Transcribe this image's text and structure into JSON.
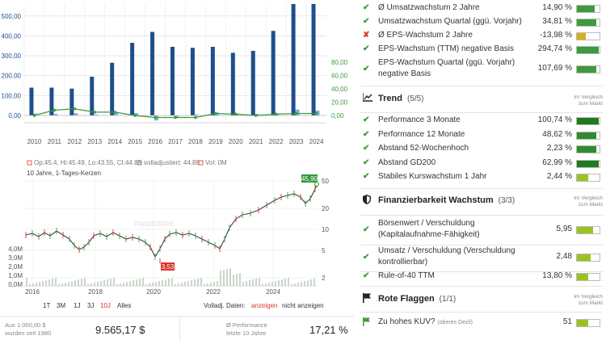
{
  "bar_chart": {
    "left_ticks": [
      "500,00",
      "400,00",
      "300,00",
      "200,00",
      "100,00",
      "0,00"
    ],
    "right_ticks": [
      "80,00",
      "60,00",
      "40,00",
      "20,00",
      "0,00"
    ],
    "years": [
      "2010",
      "2011",
      "2012",
      "2013",
      "2014",
      "2015",
      "2016",
      "2017",
      "2018",
      "2019",
      "2020",
      "2021",
      "2022",
      "2023",
      "2024"
    ],
    "revenue": [
      140,
      140,
      135,
      195,
      265,
      365,
      420,
      345,
      340,
      345,
      315,
      325,
      425,
      560,
      560
    ],
    "secondary": [
      10,
      8,
      12,
      5,
      15,
      12,
      -25,
      -12,
      5,
      15,
      10,
      8,
      8,
      30,
      25
    ],
    "growth_line": [
      0,
      8,
      10,
      5,
      5,
      0,
      -3,
      -3,
      -3,
      3,
      2,
      0,
      2,
      3,
      3
    ],
    "colors": {
      "revenue": "#1f4e8c",
      "secondary": "#7fb2dc",
      "line": "#3d9a3d"
    }
  },
  "stock_chart": {
    "legend": [
      {
        "label": "Op:45.4, Hi:45.49, Lo:43.55, CI:44.88",
        "color": "#d9342b"
      },
      {
        "label": "volladjustiert: 44.88",
        "color": "#888888"
      },
      {
        "label": "Vol: 0M",
        "color": "#d9342b"
      }
    ],
    "subtitle": "10 Jahre, 1-Tages-Kerzen",
    "watermark": "TRADERFOX",
    "price_ticks": [
      "50",
      "20",
      "10",
      "5",
      "2"
    ],
    "volume_ticks": [
      "4,0M",
      "3,0M",
      "2,0M",
      "1,0M",
      "0,0M"
    ],
    "x_labels": [
      "2016",
      "2018",
      "2020",
      "2022",
      "2024"
    ],
    "last_price": "45,90",
    "low_price": "3,53"
  },
  "timebar": {
    "ranges": [
      "1T",
      "3M",
      "1J",
      "3J",
      "10J",
      "Alles"
    ],
    "active_range": "10J",
    "vol_label": "Volladj. Daten:",
    "show_label": "anzeigen",
    "hide_label": "nicht anzeigen"
  },
  "perf": {
    "invest_label_1": "Aus 1.000,00 $",
    "invest_label_2": "wurden seit 1980",
    "invest_value": "9.565,17 $",
    "avg_label_1": "Ø Performance",
    "avg_label_2": "letzte 10 Jahre",
    "avg_value": "17,21 %"
  },
  "right": {
    "growth_rows": [
      {
        "label": "Ø Umsatzwachstum 2 Jahre",
        "value": "14,90 %",
        "status": "ok",
        "fill": 0.8,
        "color": "#3d9a3d"
      },
      {
        "label": "Umsatzwachstum Quartal (ggü. Vorjahr)",
        "value": "34,81 %",
        "status": "ok",
        "fill": 0.85,
        "color": "#3d9a3d"
      },
      {
        "label": "Ø EPS-Wachstum 2 Jahre",
        "value": "-13,98 %",
        "status": "bad",
        "fill": 0.4,
        "color": "#d4b11c"
      },
      {
        "label": "EPS-Wachstum (TTM) negative Basis",
        "value": "294,74 %",
        "status": "ok",
        "fill": 0.95,
        "color": "#3d9a3d"
      }
    ],
    "growth_row_multi": {
      "label1": "EPS-Wachstum Quartal (ggü. Vorjahr)",
      "label2": "negative Basis",
      "value": "107,69 %",
      "fill": 0.85,
      "color": "#3d9a3d"
    },
    "trend": {
      "title": "Trend",
      "count": "(5/5)",
      "cmp1": "Im Vergleich",
      "cmp2": "zum Markt",
      "rows": [
        {
          "label": "Performance 3 Monate",
          "value": "100,74 %",
          "fill": 0.95,
          "color": "#1e7a1e"
        },
        {
          "label": "Performance 12 Monate",
          "value": "48,62 %",
          "fill": 0.85,
          "color": "#2e8b2e"
        },
        {
          "label": "Abstand 52-Wochenhoch",
          "value": "2,23 %",
          "fill": 0.85,
          "color": "#2e8b2e"
        },
        {
          "label": "Abstand GD200",
          "value": "62,99 %",
          "fill": 0.95,
          "color": "#1e7a1e"
        },
        {
          "label": "Stabiles Kurswachstum 1 Jahr",
          "value": "2,44 %",
          "fill": 0.5,
          "color": "#9bc320"
        }
      ]
    },
    "finance": {
      "title": "Finanzierbarkeit Wachstum",
      "count": "(3/3)",
      "cmp1": "Im Vergleich",
      "cmp2": "zum Markt",
      "rows": [
        {
          "label1": "Börsenwert / Verschuldung",
          "label2": "(Kapitalaufnahme-Fähigkeit)",
          "value": "5,95",
          "fill": 0.7,
          "color": "#9bc320"
        },
        {
          "label1": "Umsatz / Verschuldung (Verschuldung",
          "label2": "kontrollierbar)",
          "value": "2,48",
          "fill": 0.6,
          "color": "#9bc320"
        }
      ],
      "single": {
        "label": "Rule-of-40 TTM",
        "value": "13,80 %",
        "fill": 0.5,
        "color": "#9bc320"
      }
    },
    "flags": {
      "title": "Rote Flaggen",
      "count": "(1/1)",
      "cmp1": "Im Vergleich",
      "cmp2": "zum Markt",
      "row": {
        "label": "Zu hohes KUV?",
        "sub": "(oberes Dezil)",
        "value": "51",
        "fill": 0.5,
        "color": "#9bc320"
      }
    }
  }
}
